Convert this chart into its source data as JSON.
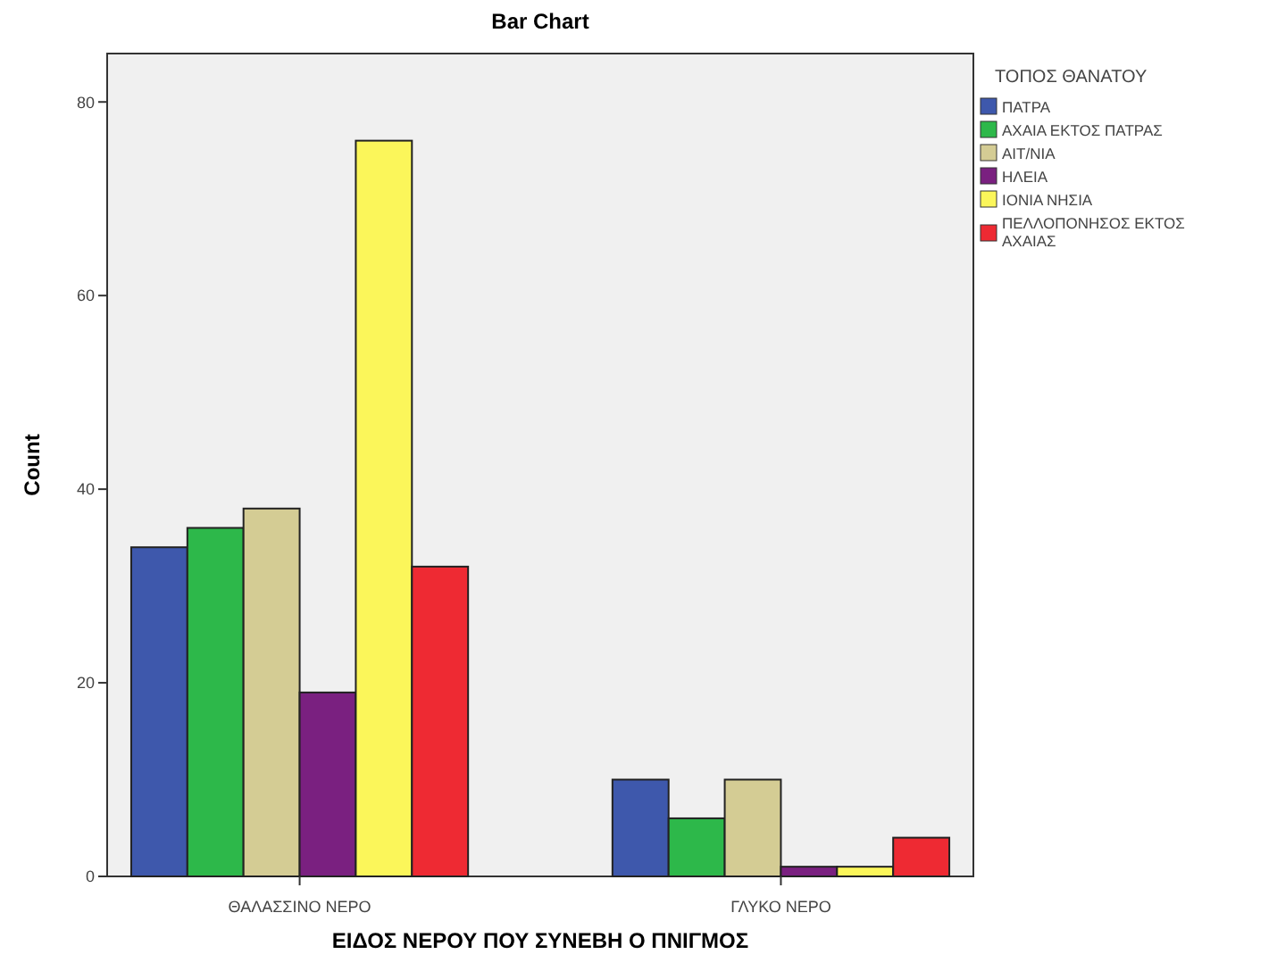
{
  "chart_data": {
    "type": "bar",
    "title": "Bar Chart",
    "xlabel": "ΕΙΔΟΣ ΝΕΡΟΥ ΠΟΥ ΣΥΝΕΒΗ Ο ΠΝΙΓΜΟΣ",
    "ylabel": "Count",
    "legend_title": "ΤΟΠΟΣ ΘΑΝΑΤΟΥ",
    "categories": [
      "ΘΑΛΑΣΣΙΝΟ ΝΕΡΟ",
      "ΓΛΥΚΟ ΝΕΡΟ"
    ],
    "series": [
      {
        "name": "ΠΑΤΡΑ",
        "color": "#3e58ac",
        "values": [
          34,
          10
        ]
      },
      {
        "name": "ΑΧΑΙΑ ΕΚΤΟΣ ΠΑΤΡΑΣ",
        "color": "#2db84a",
        "values": [
          36,
          6
        ]
      },
      {
        "name": "ΑΙΤ/ΝΙΑ",
        "color": "#d4cc94",
        "values": [
          38,
          10
        ]
      },
      {
        "name": "ΗΛΕΙΑ",
        "color": "#7a2080",
        "values": [
          19,
          1
        ]
      },
      {
        "name": "ΙΟΝΙΑ ΝΗΣΙΑ",
        "color": "#fbf65a",
        "values": [
          76,
          1
        ]
      },
      {
        "name": "ΠΕΛΛΟΠΟΝΗΣΟΣ ΕΚΤΟΣ ΑΧΑΙΑΣ",
        "color": "#ee2a33",
        "values": [
          32,
          4
        ]
      }
    ],
    "ylim": [
      0,
      85
    ],
    "yticks": [
      0,
      20,
      40,
      60,
      80
    ],
    "legend": "right",
    "grid": false
  }
}
